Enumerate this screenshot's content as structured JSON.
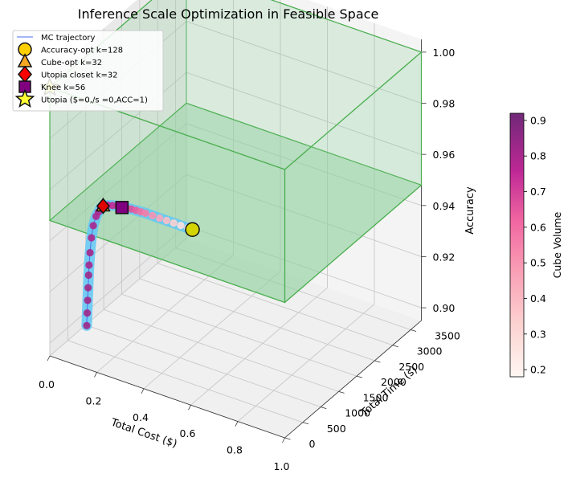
{
  "chart_data": {
    "type": "scatter",
    "projection": "3d",
    "title": "Inference Scale Optimization in Feasible Space",
    "axes": {
      "x": {
        "label": "Total Cost ($)",
        "range": [
          0.0,
          1.0
        ],
        "ticks": [
          0.0,
          0.2,
          0.4,
          0.6,
          0.8,
          1.0
        ],
        "tick_labels": [
          "0.0",
          "0.2",
          "0.4",
          "0.6",
          "0.8",
          "1.0"
        ]
      },
      "y": {
        "label": "Total Time (s)",
        "range": [
          0,
          3800
        ],
        "ticks": [
          0,
          500,
          1000,
          1500,
          2000,
          2500,
          3000,
          3500
        ],
        "tick_labels": [
          "0",
          "500",
          "1000",
          "1500",
          "2000",
          "2500",
          "3000",
          "3500"
        ]
      },
      "z": {
        "label": "Accuracy",
        "range": [
          0.895,
          1.005
        ],
        "ticks": [
          0.9,
          0.92,
          0.94,
          0.96,
          0.98,
          1.0
        ],
        "tick_labels": [
          "0.90",
          "0.92",
          "0.94",
          "0.96",
          "0.98",
          "1.00"
        ]
      }
    },
    "feasible_box": {
      "cost": [
        0.0,
        1.0
      ],
      "time": [
        0,
        3800
      ],
      "accuracy": [
        0.948,
        1.0
      ]
    },
    "trajectory": {
      "name": "MC trajectory",
      "points": [
        {
          "cost": 0.05,
          "time": 700,
          "accuracy": 0.9,
          "volume": 0.82
        },
        {
          "cost": 0.052,
          "time": 700,
          "accuracy": 0.905,
          "volume": 0.82
        },
        {
          "cost": 0.054,
          "time": 700,
          "accuracy": 0.91,
          "volume": 0.82
        },
        {
          "cost": 0.056,
          "time": 700,
          "accuracy": 0.915,
          "volume": 0.82
        },
        {
          "cost": 0.058,
          "time": 700,
          "accuracy": 0.92,
          "volume": 0.82
        },
        {
          "cost": 0.06,
          "time": 700,
          "accuracy": 0.924,
          "volume": 0.81
        },
        {
          "cost": 0.064,
          "time": 700,
          "accuracy": 0.929,
          "volume": 0.81
        },
        {
          "cost": 0.07,
          "time": 700,
          "accuracy": 0.935,
          "volume": 0.8
        },
        {
          "cost": 0.078,
          "time": 700,
          "accuracy": 0.94,
          "volume": 0.8
        },
        {
          "cost": 0.09,
          "time": 700,
          "accuracy": 0.944,
          "volume": 0.79
        },
        {
          "cost": 0.1,
          "time": 700,
          "accuracy": 0.946,
          "volume": 0.79
        },
        {
          "cost": 0.11,
          "time": 700,
          "accuracy": 0.948,
          "volume": 0.78
        },
        {
          "cost": 0.12,
          "time": 700,
          "accuracy": 0.949,
          "volume": 0.77
        },
        {
          "cost": 0.14,
          "time": 700,
          "accuracy": 0.95,
          "volume": 0.76
        },
        {
          "cost": 0.16,
          "time": 700,
          "accuracy": 0.9505,
          "volume": 0.75
        },
        {
          "cost": 0.18,
          "time": 700,
          "accuracy": 0.951,
          "volume": 0.74
        },
        {
          "cost": 0.2,
          "time": 700,
          "accuracy": 0.9512,
          "volume": 0.72
        },
        {
          "cost": 0.22,
          "time": 700,
          "accuracy": 0.9515,
          "volume": 0.7
        },
        {
          "cost": 0.24,
          "time": 700,
          "accuracy": 0.9517,
          "volume": 0.67
        },
        {
          "cost": 0.26,
          "time": 700,
          "accuracy": 0.9518,
          "volume": 0.64
        },
        {
          "cost": 0.28,
          "time": 700,
          "accuracy": 0.9519,
          "volume": 0.6
        },
        {
          "cost": 0.3,
          "time": 700,
          "accuracy": 0.952,
          "volume": 0.56
        },
        {
          "cost": 0.33,
          "time": 700,
          "accuracy": 0.952,
          "volume": 0.5
        },
        {
          "cost": 0.36,
          "time": 700,
          "accuracy": 0.952,
          "volume": 0.44
        },
        {
          "cost": 0.39,
          "time": 700,
          "accuracy": 0.952,
          "volume": 0.38
        },
        {
          "cost": 0.42,
          "time": 700,
          "accuracy": 0.952,
          "volume": 0.32
        },
        {
          "cost": 0.45,
          "time": 700,
          "accuracy": 0.952,
          "volume": 0.27
        },
        {
          "cost": 0.48,
          "time": 700,
          "accuracy": 0.952,
          "volume": 0.23
        },
        {
          "cost": 0.5,
          "time": 700,
          "accuracy": 0.952,
          "volume": 0.2
        }
      ]
    },
    "markers": [
      {
        "name": "Accuracy-opt k=128",
        "cost": 0.5,
        "time": 700,
        "accuracy": 0.952,
        "shape": "circle",
        "color": "#d4d400"
      },
      {
        "name": "Cube-opt k=32",
        "cost": 0.12,
        "time": 700,
        "accuracy": 0.949,
        "shape": "triangle",
        "color": "#f5a623"
      },
      {
        "name": "Utopia closet k=32",
        "cost": 0.12,
        "time": 700,
        "accuracy": 0.949,
        "shape": "diamond",
        "color": "#e00000"
      },
      {
        "name": "Knee k=56",
        "cost": 0.2,
        "time": 700,
        "accuracy": 0.951,
        "shape": "square",
        "color": "#800080"
      },
      {
        "name": "Utopia ($=0,/s =0,ACC=1)",
        "cost": 0.0,
        "time": 0,
        "accuracy": 1.0,
        "shape": "star",
        "color": "#ffff33"
      }
    ],
    "legend": {
      "position": "top-left",
      "entries": [
        {
          "label": "MC trajectory",
          "shape": "line",
          "color": "#4d6cf0"
        },
        {
          "label": "Accuracy-opt k=128",
          "shape": "circle",
          "color": "#ffd000"
        },
        {
          "label": "Cube-opt k=32",
          "shape": "triangle",
          "color": "#f5a623"
        },
        {
          "label": "Utopia closet k=32",
          "shape": "diamond",
          "color": "#ff0000"
        },
        {
          "label": "Knee k=56",
          "shape": "square",
          "color": "#800080"
        },
        {
          "label": "Utopia ($=0,/s =0,ACC=1)",
          "shape": "star",
          "color": "#ffff33"
        }
      ]
    },
    "colorbar": {
      "label": "Cube Volume",
      "range": [
        0.18,
        0.92
      ],
      "ticks": [
        0.2,
        0.3,
        0.4,
        0.5,
        0.6,
        0.7,
        0.8,
        0.9
      ],
      "tick_labels": [
        "0.2",
        "0.3",
        "0.4",
        "0.5",
        "0.6",
        "0.7",
        "0.8",
        "0.9"
      ],
      "colormap": "RdPu"
    },
    "colors": {
      "feasible_edge": "#4caf50",
      "feasible_fill": "#8fd19e",
      "trajectory_halo": "#60c8f5",
      "pane": "#f2f2f2",
      "grid": "#c8c8c8"
    }
  }
}
